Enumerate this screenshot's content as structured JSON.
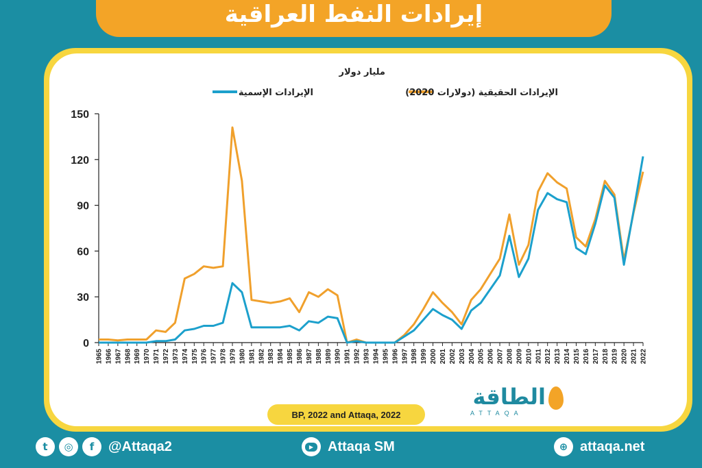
{
  "header": {
    "title": "إيرادات النفط العراقية"
  },
  "chart_data": {
    "type": "line",
    "unit_label": "مليار دولار",
    "ylim": [
      0,
      150
    ],
    "yticks": [
      0,
      30,
      60,
      90,
      120,
      150
    ],
    "grid": false,
    "x": [
      1965,
      1966,
      1967,
      1968,
      1969,
      1970,
      1971,
      1972,
      1973,
      1974,
      1975,
      1976,
      1977,
      1978,
      1979,
      1980,
      1981,
      1982,
      1983,
      1984,
      1985,
      1986,
      1987,
      1988,
      1989,
      1990,
      1991,
      1992,
      1993,
      1994,
      1995,
      1996,
      1997,
      1998,
      1999,
      2000,
      2001,
      2002,
      2003,
      2004,
      2005,
      2006,
      2007,
      2008,
      2009,
      2010,
      2011,
      2012,
      2013,
      2014,
      2015,
      2016,
      2017,
      2018,
      2019,
      2020,
      2021,
      2022
    ],
    "series": [
      {
        "name": "الإيرادات الحقيقية (دولارات 2020)",
        "color": "#f0a02c",
        "values": [
          2,
          2,
          1.5,
          2,
          2,
          2,
          8,
          7,
          13,
          42,
          45,
          50,
          49,
          50,
          141,
          106,
          28,
          27,
          26,
          27,
          29,
          20,
          33,
          30,
          35,
          31,
          0,
          2,
          0,
          0,
          0,
          0,
          5,
          12,
          22,
          33,
          26,
          20,
          12,
          28,
          35,
          45,
          55,
          84,
          51,
          64,
          99,
          111,
          105,
          101,
          69,
          63,
          81,
          106,
          97,
          54,
          85,
          112
        ]
      },
      {
        "name": "الإيرادات الإسمية",
        "color": "#1ca0cc",
        "values": [
          0,
          0,
          0,
          0,
          0,
          0,
          1,
          1,
          2,
          8,
          9,
          11,
          11,
          13,
          39,
          33,
          10,
          10,
          10,
          10,
          11,
          8,
          14,
          13,
          17,
          16,
          0,
          1,
          0,
          0,
          0,
          0,
          4,
          8,
          15,
          22,
          18,
          15,
          9,
          21,
          26,
          35,
          44,
          70,
          43,
          55,
          87,
          98,
          94,
          92,
          62,
          58,
          78,
          103,
          95,
          51,
          86,
          122
        ]
      }
    ]
  },
  "source": "BP, 2022 and Attaqa, 2022",
  "logo": {
    "name": "الطاقة",
    "latin": "ATTAQA"
  },
  "footer": {
    "twitter_handle": "@Attaqa2",
    "youtube_handle": "Attaqa SM",
    "website": "attaqa.net"
  }
}
